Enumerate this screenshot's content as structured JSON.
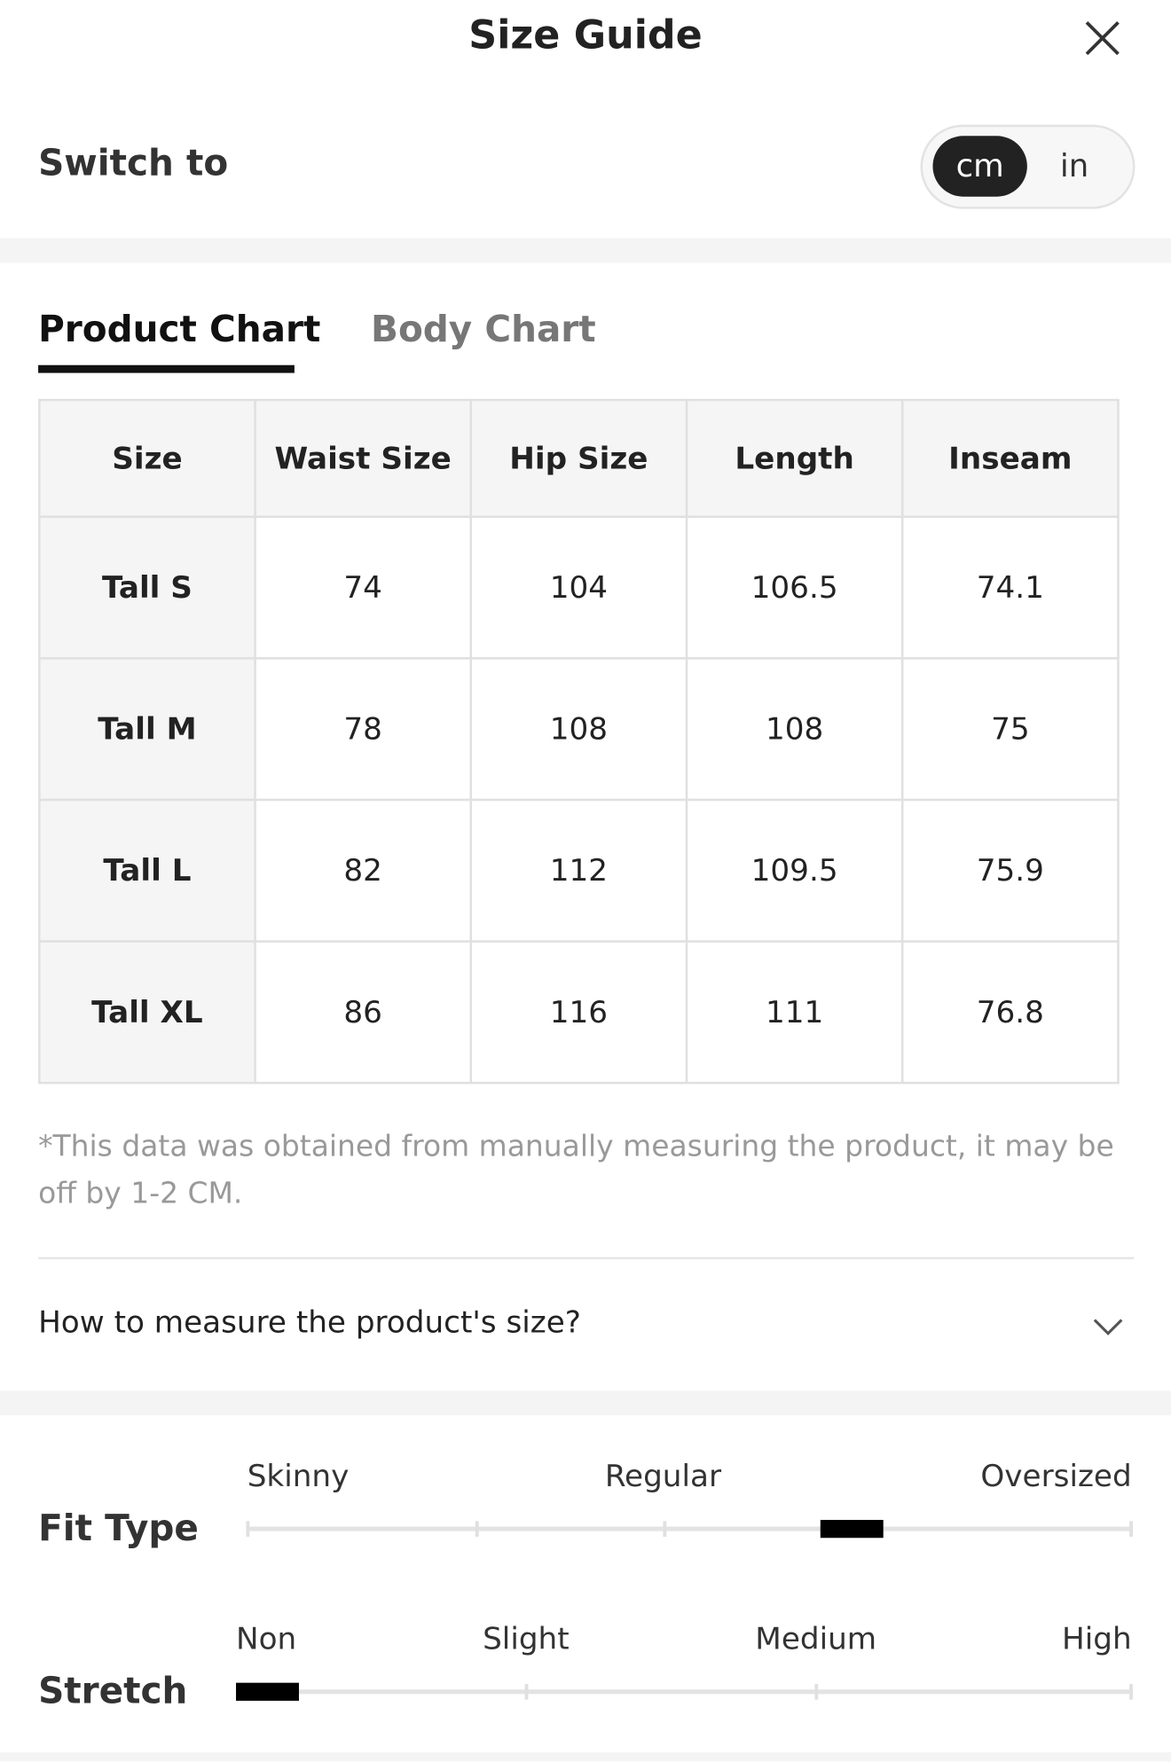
{
  "header": {
    "title": "Size Guide"
  },
  "unit_switch": {
    "label": "Switch to",
    "options": [
      "cm",
      "in"
    ]
  },
  "tabs": [
    "Product Chart",
    "Body Chart"
  ],
  "table": {
    "header": [
      "Size",
      "Waist Size",
      "Hip Size",
      "Length",
      "Inseam"
    ],
    "rows": [
      [
        "Tall S",
        "74",
        "104",
        "106.5",
        "74.1"
      ],
      [
        "Tall M",
        "78",
        "108",
        "108",
        "75"
      ],
      [
        "Tall L",
        "82",
        "112",
        "109.5",
        "75.9"
      ],
      [
        "Tall XL",
        "86",
        "116",
        "111",
        "76.8"
      ]
    ]
  },
  "note": "*This data was obtained from manually measuring the product, it may be off by 1-2 CM.",
  "faq": "How to measure the product's size?",
  "fit_scales": [
    {
      "label": "Fit Type",
      "ticks": [
        "Skinny",
        "Regular",
        "Oversized"
      ]
    },
    {
      "label": "Stretch",
      "ticks": [
        "Non",
        "Slight",
        "Medium",
        "High"
      ]
    }
  ]
}
